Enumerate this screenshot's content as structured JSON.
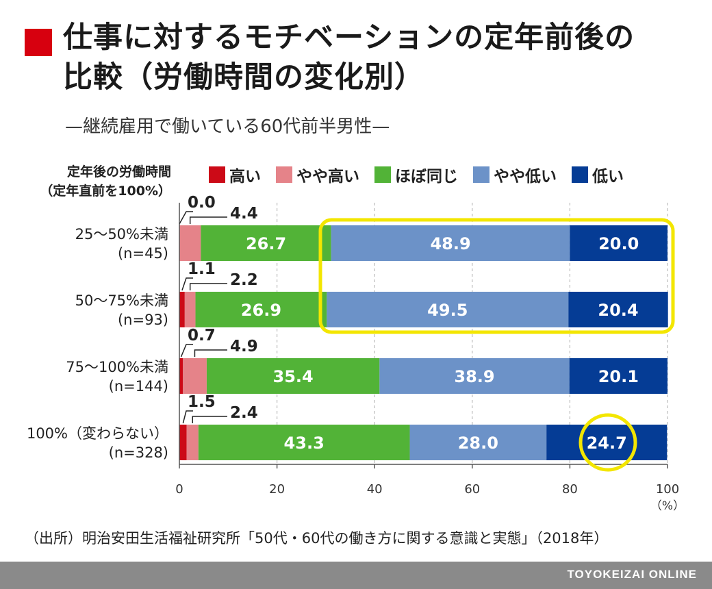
{
  "title_line1": "仕事に対するモチベーションの定年前後の",
  "title_line2": "比較（労働時間の変化別）",
  "subtitle": "—継続雇用で働いている60代前半男性—",
  "source": "（出所）明治安田生活福祉研究所「50代・60代の働き方に関する意識と実態」（2018年）",
  "footer": "TOYOKEIZAI ONLINE",
  "colors": {
    "title_mark": "#d7000f",
    "highlight": "#f3e600",
    "grid": "#bbbbbb",
    "axis": "#555555"
  },
  "chart_data": {
    "type": "bar",
    "orientation": "horizontal",
    "stacked": true,
    "ylabel_line1": "定年後の労働時間",
    "ylabel_line2": "（定年直前を100%）",
    "categories": [
      {
        "label": "25〜50%未満",
        "n": "(n=45)"
      },
      {
        "label": "50〜75%未満",
        "n": "(n=93)"
      },
      {
        "label": "75〜100%未満",
        "n": "(n=144)"
      },
      {
        "label": "100%（変わらない）",
        "n": "(n=328)"
      }
    ],
    "series": [
      {
        "name": "高い",
        "color": "#cc0a17",
        "values": [
          0.0,
          1.1,
          0.7,
          1.5
        ]
      },
      {
        "name": "やや高い",
        "color": "#e58389",
        "values": [
          4.4,
          2.2,
          4.9,
          2.4
        ]
      },
      {
        "name": "ほぼ同じ",
        "color": "#52b337",
        "values": [
          26.7,
          26.9,
          35.4,
          43.3
        ]
      },
      {
        "name": "やや低い",
        "color": "#6c92c8",
        "values": [
          48.9,
          49.5,
          38.9,
          28.0
        ]
      },
      {
        "name": "低い",
        "color": "#053c95",
        "values": [
          20.0,
          20.4,
          20.1,
          24.7
        ]
      }
    ],
    "x_ticks": [
      "0",
      "20",
      "40",
      "60",
      "80",
      "100"
    ],
    "x_unit": "（%）",
    "xlim": [
      0,
      100
    ],
    "grid": true
  }
}
